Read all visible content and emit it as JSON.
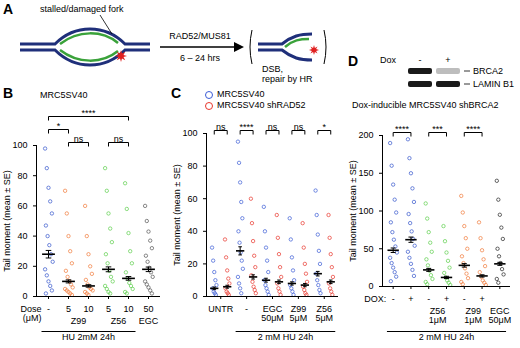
{
  "diagram": {
    "panel": "A",
    "left_label": "stalled/damaged fork",
    "enzymes": "RAD52/MUS81",
    "time": "6 – 24 hrs",
    "result": [
      "DSB,",
      "repair by HR"
    ]
  },
  "chart_data": [
    {
      "panel": "B",
      "type": "scatter",
      "marker": "open circle",
      "title": "MRC5SV40",
      "y_label": "Tail moment (mean ± SE)",
      "ylim": [
        0,
        100
      ],
      "yticks": [
        0,
        20,
        40,
        60,
        80,
        100
      ],
      "x_row_label": "Dose (μM)",
      "categories": [
        "-",
        "5",
        "10",
        "5",
        "10",
        "50"
      ],
      "groups": [
        {
          "label": "Z99",
          "from": 1,
          "to": 2
        },
        {
          "label": "Z56",
          "from": 3,
          "to": 4
        },
        {
          "label": "EGC",
          "from": 5,
          "to": 5
        }
      ],
      "treatment": {
        "label": "HU 2mM 24h",
        "from": 0,
        "to": 4
      },
      "series": [
        {
          "colors": [
            "#3355cc",
            "#f07a3a",
            "#f07a3a",
            "#5ccf4a",
            "#5ccf4a",
            "#555555"
          ],
          "mean": [
            28,
            10,
            7,
            18,
            12,
            18
          ],
          "se": [
            2.5,
            1,
            0.8,
            1.6,
            1.2,
            1.5
          ],
          "points": [
            [
              98,
              85,
              72,
              63,
              55,
              47,
              40,
              34,
              28,
              23,
              18,
              14,
              10,
              7,
              4,
              2
            ],
            [
              70,
              55,
              40,
              30,
              22,
              17,
              13,
              10,
              8,
              6,
              5,
              4,
              3,
              2,
              1
            ],
            [
              60,
              40,
              28,
              20,
              15,
              11,
              8,
              6,
              5,
              4,
              3,
              2,
              1
            ],
            [
              85,
              70,
              55,
              45,
              36,
              28,
              22,
              17,
              13,
              10,
              7,
              5,
              3,
              2
            ],
            [
              75,
              58,
              42,
              30,
              22,
              16,
              12,
              9,
              7,
              5,
              3,
              2
            ],
            [
              60,
              50,
              43,
              37,
              32,
              27,
              23,
              19,
              16,
              13,
              10,
              8,
              6,
              4,
              2
            ]
          ]
        }
      ],
      "comparisons": [
        {
          "from": 1,
          "to": 2,
          "label": "ns"
        },
        {
          "from": 3,
          "to": 4,
          "label": "ns"
        },
        {
          "from": 0,
          "to": 1,
          "label": "*"
        },
        {
          "from": 0,
          "to": 4,
          "label": "****"
        }
      ]
    },
    {
      "panel": "C",
      "type": "scatter",
      "marker": "open circle",
      "legend": "top",
      "y_label": "Tail moment (mean ± SE)",
      "ylim": [
        0,
        100
      ],
      "yticks": [
        0,
        20,
        40,
        60,
        80,
        100
      ],
      "categories": [
        "UNTR",
        "-",
        "EGC 50μM",
        "Z99 5μM",
        "Z56 5μM"
      ],
      "treatment": {
        "label": "2 mM HU 24h",
        "from": 2,
        "to": 9
      },
      "series": [
        {
          "name": "MRC5SV40",
          "color": "#3b5bd6",
          "mean": [
            5,
            28,
            10,
            8,
            14
          ],
          "se": [
            0.8,
            2.5,
            1.2,
            1,
            1.4
          ],
          "points": [
            [
              30,
              22,
              15,
              10,
              7,
              5,
              3,
              2,
              1
            ],
            [
              95,
              82,
              70,
              58,
              48,
              40,
              33,
              27,
              22,
              17,
              12,
              8,
              5,
              2
            ],
            [
              55,
              40,
              30,
              22,
              15,
              10,
              7,
              5,
              3,
              1
            ],
            [
              48,
              35,
              24,
              16,
              10,
              7,
              5,
              3,
              1
            ],
            [
              65,
              50,
              38,
              28,
              20,
              14,
              10,
              7,
              4,
              2
            ]
          ]
        },
        {
          "name": "MRC5SV40 shRAD52",
          "color": "#e8352b",
          "mean": [
            6,
            12,
            9,
            7,
            9
          ],
          "se": [
            0.9,
            1.3,
            1.1,
            1,
            1.1
          ],
          "points": [
            [
              35,
              24,
              16,
              11,
              8,
              5,
              3,
              2,
              1
            ],
            [
              60,
              45,
              34,
              25,
              18,
              13,
              9,
              6,
              4,
              2
            ],
            [
              50,
              36,
              26,
              18,
              12,
              8,
              5,
              3,
              1
            ],
            [
              45,
              30,
              20,
              14,
              9,
              6,
              4,
              2,
              1
            ],
            [
              50,
              36,
              26,
              18,
              12,
              8,
              5,
              3,
              1
            ]
          ]
        }
      ],
      "comparisons": [
        {
          "from": 0,
          "to": 1,
          "label": "ns"
        },
        {
          "from": 2,
          "to": 3,
          "label": "****"
        },
        {
          "from": 4,
          "to": 5,
          "label": "ns"
        },
        {
          "from": 6,
          "to": 7,
          "label": "ns"
        },
        {
          "from": 8,
          "to": 9,
          "label": "*"
        }
      ]
    },
    {
      "panel": "D",
      "type": "scatter",
      "marker": "open circle",
      "title": "Dox-inducible MRC5SV40 shBRCA2",
      "y_label": "Tail moment (mean ± SE)",
      "inset_blot": {
        "header": "Dox",
        "lanes": [
          "-",
          "+"
        ],
        "rows": [
          "BRCA2",
          "LAMIN B1"
        ]
      },
      "ylim": [
        0,
        200
      ],
      "yticks": [
        0,
        50,
        100,
        150,
        200
      ],
      "x_row_label": "DOX:",
      "categories": [
        "-",
        "+",
        "-",
        "+",
        "-",
        "+",
        null
      ],
      "groups": [
        {
          "label": "Z56 1μM",
          "from": 2,
          "to": 3
        },
        {
          "label": "Z99 1μM",
          "from": 4,
          "to": 5
        },
        {
          "label": "EGC 50μM",
          "from": 6,
          "to": 6
        }
      ],
      "treatment": {
        "label": "2 mM HU 24h",
        "from": 0,
        "to": 6
      },
      "series": [
        {
          "colors": [
            "#3355cc",
            "#3355cc",
            "#5ccf4a",
            "#5ccf4a",
            "#f07a3a",
            "#f07a3a",
            "#222222"
          ],
          "mean": [
            48,
            62,
            22,
            12,
            28,
            14,
            30
          ],
          "se": [
            3,
            3.5,
            2,
            1.5,
            2.3,
            1.5,
            2
          ],
          "points": [
            [
              190,
              160,
              135,
              115,
              98,
              85,
              72,
              62,
              53,
              45,
              38,
              31,
              25,
              19,
              13,
              7
            ],
            [
              195,
              170,
              150,
              130,
              112,
              96,
              84,
              73,
              63,
              54,
              46,
              38,
              30,
              22,
              14
            ],
            [
              110,
              90,
              72,
              58,
              46,
              36,
              28,
              21,
              15,
              10,
              6,
              3
            ],
            [
              80,
              60,
              45,
              34,
              25,
              18,
              12,
              8,
              5,
              2
            ],
            [
              120,
              98,
              80,
              64,
              50,
              40,
              31,
              24,
              17,
              11,
              6,
              3
            ],
            [
              85,
              64,
              48,
              36,
              27,
              19,
              13,
              8,
              5,
              2
            ],
            [
              140,
              115,
              95,
              78,
              63,
              50,
              40,
              31,
              23,
              16,
              10,
              5
            ]
          ]
        }
      ],
      "comparisons": [
        {
          "from": 0,
          "to": 1,
          "label": "****"
        },
        {
          "from": 2,
          "to": 3,
          "label": "***"
        },
        {
          "from": 4,
          "to": 5,
          "label": "****"
        }
      ]
    }
  ]
}
